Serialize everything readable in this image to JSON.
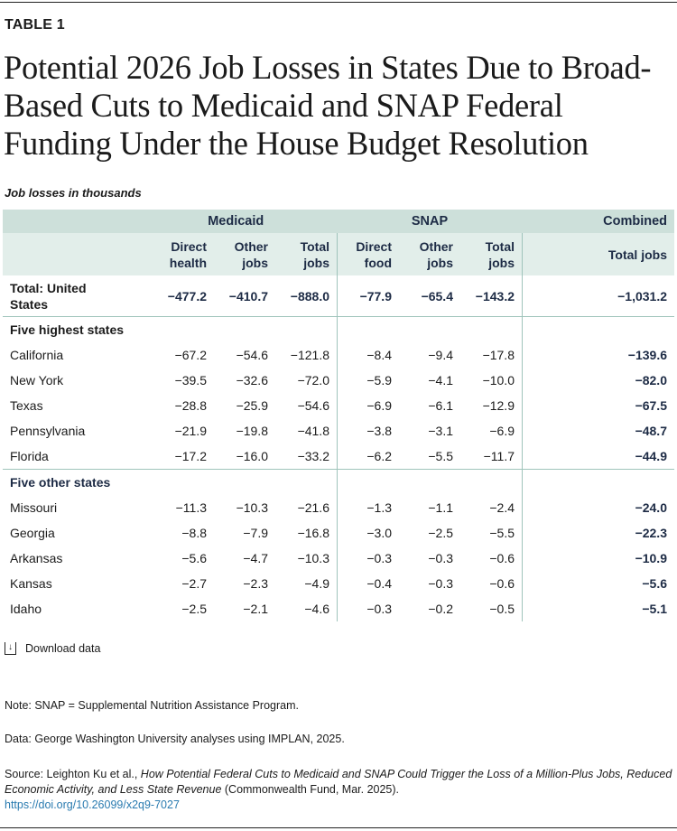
{
  "header": {
    "label": "TABLE 1",
    "title": "Potential 2026 Job Losses in States Due to Broad-Based Cuts to Medicaid and SNAP Federal Funding Under the House Budget Resolution",
    "units": "Job losses in thousands"
  },
  "table": {
    "groups": [
      "Medicaid",
      "SNAP",
      "Combined"
    ],
    "columns": [
      "Direct health",
      "Other jobs",
      "Total jobs",
      "Direct food",
      "Other jobs",
      "Total jobs",
      "Total jobs"
    ],
    "total": {
      "name": "Total: United States",
      "values": [
        "−477.2",
        "−410.7",
        "−888.0",
        "−77.9",
        "−65.4",
        "−143.2",
        "−1,031.2"
      ]
    },
    "sections": [
      {
        "label": "Five highest states",
        "rows": [
          {
            "name": "California",
            "values": [
              "−67.2",
              "−54.6",
              "−121.8",
              "−8.4",
              "−9.4",
              "−17.8",
              "−139.6"
            ]
          },
          {
            "name": "New York",
            "values": [
              "−39.5",
              "−32.6",
              "−72.0",
              "−5.9",
              "−4.1",
              "−10.0",
              "−82.0"
            ]
          },
          {
            "name": "Texas",
            "values": [
              "−28.8",
              "−25.9",
              "−54.6",
              "−6.9",
              "−6.1",
              "−12.9",
              "−67.5"
            ]
          },
          {
            "name": "Pennsylvania",
            "values": [
              "−21.9",
              "−19.8",
              "−41.8",
              "−3.8",
              "−3.1",
              "−6.9",
              "−48.7"
            ]
          },
          {
            "name": "Florida",
            "values": [
              "−17.2",
              "−16.0",
              "−33.2",
              "−6.2",
              "−5.5",
              "−11.7",
              "−44.9"
            ]
          }
        ]
      },
      {
        "label": "Five other states",
        "rows": [
          {
            "name": "Missouri",
            "values": [
              "−11.3",
              "−10.3",
              "−21.6",
              "−1.3",
              "−1.1",
              "−2.4",
              "−24.0"
            ]
          },
          {
            "name": "Georgia",
            "values": [
              "−8.8",
              "−7.9",
              "−16.8",
              "−3.0",
              "−2.5",
              "−5.5",
              "−22.3"
            ]
          },
          {
            "name": "Arkansas",
            "values": [
              "−5.6",
              "−4.7",
              "−10.3",
              "−0.3",
              "−0.3",
              "−0.6",
              "−10.9"
            ]
          },
          {
            "name": "Kansas",
            "values": [
              "−2.7",
              "−2.3",
              "−4.9",
              "−0.4",
              "−0.3",
              "−0.6",
              "−5.6"
            ]
          },
          {
            "name": "Idaho",
            "values": [
              "−2.5",
              "−2.1",
              "−4.6",
              "−0.3",
              "−0.2",
              "−0.5",
              "−5.1"
            ]
          }
        ]
      }
    ]
  },
  "download_label": "Download data",
  "notes": {
    "note": "Note: SNAP = Supplemental Nutrition Assistance Program.",
    "data": "Data: George Washington University analyses using IMPLAN, 2025.",
    "source_prefix": "Source: Leighton Ku et al., ",
    "source_title": "How Potential Federal Cuts to Medicaid and SNAP Could Trigger the Loss of a Million-Plus Jobs, Reduced Economic Activity, and Less State Revenue",
    "source_suffix": " (Commonwealth Fund, Mar. 2025).",
    "doi": "https://doi.org/10.26099/x2q9-7027"
  },
  "colors": {
    "header_dark": "#cde0da",
    "header_light": "#e2eeea",
    "navy": "#1d2b45",
    "link": "#2a7bb0"
  }
}
